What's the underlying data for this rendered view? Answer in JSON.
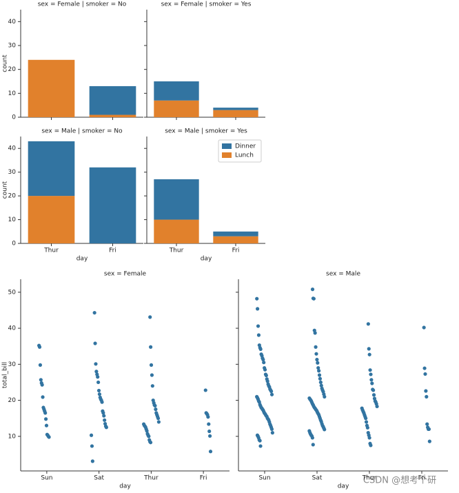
{
  "chart_data": [
    {
      "type": "bar",
      "title": "sex = Female | smoker = No",
      "ylabel": "count",
      "categories": [
        "Thur",
        "Fri"
      ],
      "stacked": true,
      "series": [
        {
          "name": "Lunch",
          "color": "#e1812c",
          "values": [
            24,
            1
          ]
        },
        {
          "name": "Dinner",
          "color": "#3274a1",
          "values": [
            0,
            12
          ]
        }
      ],
      "ylim": [
        0,
        45
      ],
      "yticks": [
        0,
        10,
        20,
        30,
        40
      ]
    },
    {
      "type": "bar",
      "title": "sex = Female | smoker = Yes",
      "categories": [
        "Thur",
        "Fri"
      ],
      "stacked": true,
      "series": [
        {
          "name": "Lunch",
          "color": "#e1812c",
          "values": [
            7,
            3
          ]
        },
        {
          "name": "Dinner",
          "color": "#3274a1",
          "values": [
            8,
            1
          ]
        }
      ],
      "ylim": [
        0,
        45
      ],
      "yticks": [
        0,
        10,
        20,
        30,
        40
      ]
    },
    {
      "type": "bar",
      "title": "sex = Male | smoker = No",
      "ylabel": "count",
      "xlabel": "day",
      "categories": [
        "Thur",
        "Fri"
      ],
      "stacked": true,
      "series": [
        {
          "name": "Lunch",
          "color": "#e1812c",
          "values": [
            20,
            0
          ]
        },
        {
          "name": "Dinner",
          "color": "#3274a1",
          "values": [
            23,
            32
          ]
        }
      ],
      "ylim": [
        0,
        45
      ],
      "yticks": [
        0,
        10,
        20,
        30,
        40
      ]
    },
    {
      "type": "bar",
      "title": "sex = Male | smoker = Yes",
      "xlabel": "day",
      "categories": [
        "Thur",
        "Fri"
      ],
      "stacked": true,
      "legend": "upper right",
      "series": [
        {
          "name": "Lunch",
          "color": "#e1812c",
          "values": [
            10,
            3
          ]
        },
        {
          "name": "Dinner",
          "color": "#3274a1",
          "values": [
            17,
            2
          ]
        }
      ],
      "ylim": [
        0,
        45
      ],
      "yticks": [
        0,
        10,
        20,
        30,
        40
      ]
    },
    {
      "type": "strip",
      "title": "sex = Female",
      "ylabel": "total_bill",
      "xlabel": "day",
      "color": "#3274a1",
      "categories": [
        "Sun",
        "Sat",
        "Thur",
        "Fri"
      ],
      "values": [
        [
          35.2,
          34.8,
          29.8,
          25.7,
          24.8,
          24.3,
          20.9,
          18.0,
          17.5,
          17.0,
          16.5,
          14.8,
          13.0,
          10.5,
          10.3,
          10.0,
          9.8
        ],
        [
          44.3,
          35.8,
          30.1,
          28.0,
          27.2,
          26.5,
          25.0,
          22.7,
          21.7,
          20.8,
          20.3,
          20.0,
          19.5,
          17.0,
          16.5,
          15.7,
          14.5,
          13.5,
          12.8,
          12.5,
          10.3,
          7.3,
          3.1
        ],
        [
          43.1,
          34.8,
          29.8,
          27.0,
          24.0,
          20.0,
          19.3,
          18.7,
          18.5,
          17.5,
          16.5,
          16.0,
          15.5,
          15.0,
          14.0,
          13.4,
          13.0,
          12.8,
          12.5,
          12.0,
          11.5,
          10.7,
          10.3,
          10.0,
          9.0,
          8.5,
          8.3
        ],
        [
          22.8,
          16.5,
          16.3,
          16.0,
          15.4,
          13.4,
          11.4,
          10.1,
          5.8
        ]
      ],
      "ylim": [
        0.4,
        53.6
      ],
      "yticks": [
        10,
        20,
        30,
        40,
        50
      ]
    },
    {
      "type": "strip",
      "title": "sex = Male",
      "xlabel": "day",
      "color": "#3274a1",
      "categories": [
        "Sun",
        "Sat",
        "Thur",
        "Fri"
      ],
      "values": [
        [
          48.2,
          45.4,
          40.6,
          38.1,
          35.3,
          34.6,
          34.2,
          32.8,
          32.4,
          31.7,
          31.3,
          30.5,
          29.0,
          28.5,
          27.2,
          26.9,
          25.9,
          25.3,
          24.5,
          24.0,
          23.7,
          23.1,
          22.8,
          22.5,
          21.6,
          21.0,
          20.7,
          20.3,
          19.8,
          19.5,
          18.8,
          18.4,
          18.0,
          17.8,
          17.5,
          17.3,
          16.9,
          16.5,
          16.3,
          16.0,
          15.7,
          15.5,
          15.0,
          14.8,
          14.5,
          14.0,
          13.4,
          13.0,
          12.5,
          12.0,
          11.0,
          10.3,
          10.0,
          9.6,
          9.0,
          8.8,
          7.3
        ],
        [
          50.8,
          48.3,
          48.2,
          39.4,
          38.7,
          34.8,
          32.9,
          31.3,
          30.4,
          29.0,
          28.2,
          27.0,
          26.0,
          25.0,
          24.1,
          23.3,
          22.8,
          22.4,
          21.7,
          21.0,
          20.6,
          20.3,
          20.1,
          19.8,
          19.4,
          19.0,
          18.7,
          18.3,
          18.0,
          17.8,
          17.5,
          17.3,
          17.0,
          16.6,
          16.3,
          16.0,
          15.5,
          15.0,
          14.5,
          14.1,
          13.5,
          13.0,
          12.7,
          12.3,
          11.9,
          11.5,
          11.0,
          10.6,
          10.3,
          10.1,
          9.6,
          7.7
        ],
        [
          41.2,
          34.3,
          32.7,
          28.4,
          27.2,
          25.7,
          24.7,
          23.0,
          22.8,
          21.5,
          20.5,
          19.8,
          19.5,
          19.0,
          18.3,
          17.8,
          17.3,
          16.9,
          16.5,
          16.0,
          15.5,
          15.0,
          14.0,
          13.0,
          12.4,
          11.0,
          10.3,
          9.6,
          8.0,
          7.5
        ],
        [
          40.2,
          28.9,
          27.3,
          22.6,
          21.0,
          13.4,
          12.5,
          12.0,
          12.0,
          8.6
        ]
      ],
      "ylim": [
        0.4,
        53.6
      ],
      "yticks": [
        10,
        20,
        30,
        40,
        50
      ]
    }
  ],
  "watermark": "CSDN @想考个研"
}
